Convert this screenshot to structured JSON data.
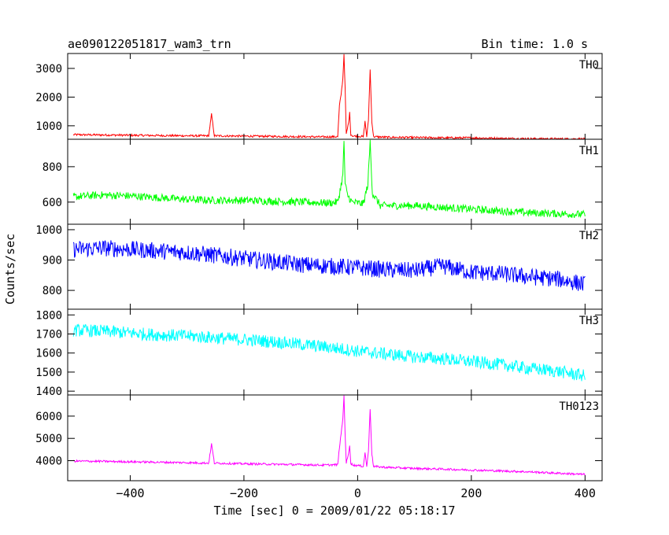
{
  "chart_data": {
    "type": "line",
    "title_left": "ae090122051817_wam3_trn",
    "title_right": "Bin time: 1.0 s",
    "xlabel": "Time [sec] 0 = 2009/01/22 05:18:17",
    "ylabel": "Counts/sec",
    "xlim": [
      -510,
      430
    ],
    "x_ticks": [
      -400,
      -200,
      0,
      200,
      400
    ],
    "panels": [
      {
        "name": "TH0",
        "color": "#ff0000",
        "ylim": [
          530,
          3520
        ],
        "y_ticks": [
          1000,
          2000,
          3000
        ],
        "x": [
          -500,
          -450,
          -400,
          -350,
          -300,
          -262,
          -257,
          -252,
          -200,
          -150,
          -100,
          -60,
          -35,
          -32,
          -29,
          -26,
          -24,
          -22,
          -20,
          -16,
          -14,
          -12,
          -8,
          0,
          10,
          13,
          16,
          19,
          22,
          25,
          28,
          50,
          100,
          150,
          200,
          250,
          300,
          350,
          400
        ],
        "values": [
          690,
          680,
          670,
          660,
          650,
          650,
          1400,
          650,
          640,
          630,
          620,
          610,
          620,
          1700,
          2100,
          2650,
          3500,
          2300,
          700,
          1100,
          1450,
          700,
          640,
          640,
          620,
          1150,
          620,
          1200,
          2950,
          1150,
          620,
          600,
          590,
          580,
          580,
          560,
          550,
          545,
          540
        ]
      },
      {
        "name": "TH1",
        "color": "#00ff00",
        "ylim": [
          475,
          955
        ],
        "y_ticks": [
          600,
          800
        ],
        "x": [
          -500,
          -450,
          -400,
          -350,
          -300,
          -250,
          -200,
          -150,
          -100,
          -50,
          -35,
          -30,
          -26,
          -24,
          -22,
          -18,
          -14,
          -10,
          0,
          10,
          18,
          22,
          26,
          40,
          100,
          150,
          200,
          250,
          300,
          350,
          400
        ],
        "values": [
          630,
          640,
          635,
          625,
          615,
          610,
          610,
          605,
          600,
          595,
          600,
          680,
          750,
          950,
          700,
          640,
          620,
          600,
          595,
          590,
          700,
          940,
          650,
          580,
          580,
          570,
          560,
          550,
          540,
          535,
          530
        ]
      },
      {
        "name": "TH2",
        "color": "#0000ff",
        "ylim": [
          738,
          1018
        ],
        "y_ticks": [
          800,
          900,
          1000
        ],
        "x": [
          -500,
          -450,
          -400,
          -350,
          -300,
          -250,
          -200,
          -150,
          -100,
          -50,
          0,
          50,
          100,
          150,
          200,
          250,
          300,
          350,
          400
        ],
        "values": [
          935,
          940,
          935,
          930,
          925,
          915,
          905,
          895,
          885,
          880,
          875,
          868,
          865,
          880,
          860,
          855,
          845,
          838,
          820
        ]
      },
      {
        "name": "TH3",
        "color": "#00ffff",
        "ylim": [
          1380,
          1830
        ],
        "y_ticks": [
          1400,
          1500,
          1600,
          1700,
          1800
        ],
        "x": [
          -500,
          -450,
          -400,
          -350,
          -300,
          -250,
          -200,
          -150,
          -100,
          -50,
          0,
          50,
          100,
          150,
          200,
          250,
          300,
          350,
          400
        ],
        "values": [
          1720,
          1715,
          1705,
          1695,
          1690,
          1680,
          1670,
          1660,
          1645,
          1630,
          1610,
          1595,
          1580,
          1570,
          1555,
          1540,
          1520,
          1505,
          1480
        ]
      },
      {
        "name": "TH0123",
        "color": "#ff00ff",
        "ylim": [
          3100,
          6950
        ],
        "y_ticks": [
          4000,
          5000,
          6000
        ],
        "x": [
          -500,
          -450,
          -400,
          -350,
          -300,
          -262,
          -257,
          -252,
          -200,
          -150,
          -100,
          -60,
          -35,
          -32,
          -29,
          -26,
          -24,
          -22,
          -20,
          -16,
          -14,
          -12,
          -8,
          0,
          10,
          13,
          16,
          19,
          22,
          25,
          28,
          50,
          100,
          150,
          200,
          250,
          300,
          350,
          400
        ],
        "values": [
          3980,
          3970,
          3950,
          3930,
          3910,
          3890,
          4750,
          3890,
          3860,
          3840,
          3820,
          3800,
          3820,
          4600,
          5200,
          5900,
          6900,
          5200,
          3900,
          4300,
          4700,
          3880,
          3800,
          3780,
          3750,
          4350,
          3750,
          4400,
          6350,
          4300,
          3740,
          3700,
          3650,
          3620,
          3580,
          3540,
          3500,
          3440,
          3380
        ]
      }
    ]
  }
}
